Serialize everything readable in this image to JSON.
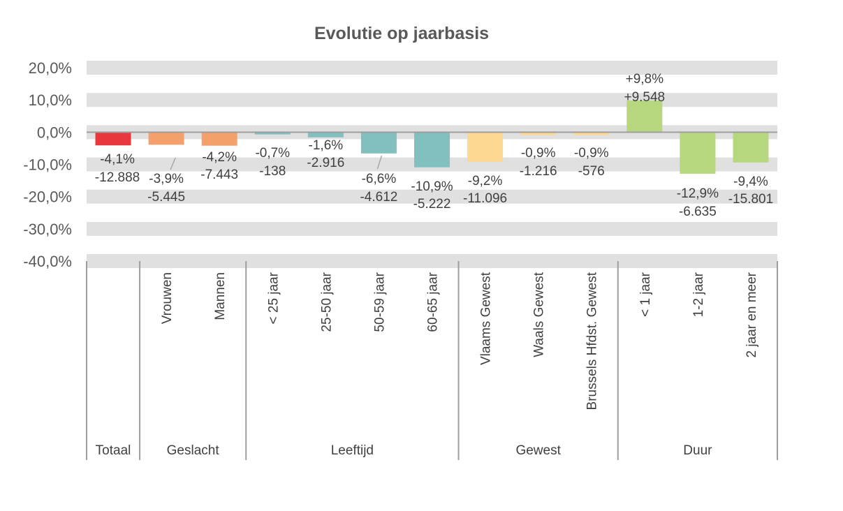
{
  "chart_data": {
    "type": "bar",
    "title": "Evolutie op jaarbasis",
    "ylim": [
      -40,
      20
    ],
    "yticks": [
      20,
      10,
      0,
      -10,
      -20,
      -30,
      -40
    ],
    "ytick_labels": [
      "20,0%",
      "10,0%",
      "0,0%",
      "-10,0%",
      "-20,0%",
      "-30,0%",
      "-40,0%"
    ],
    "categories": [
      "",
      "Vrouwen",
      "Mannen",
      "< 25 jaar",
      "25-50 jaar",
      "50-59 jaar",
      "60-65 jaar",
      "Vlaams Gewest",
      "Waals Gewest",
      "Brussels Hfdst. Gewest",
      "< 1 jaar",
      "1-2 jaar",
      "2 jaar en meer"
    ],
    "values": [
      -4.1,
      -3.9,
      -4.2,
      -0.7,
      -1.6,
      -6.6,
      -10.9,
      -9.2,
      -0.9,
      -0.9,
      9.8,
      -12.9,
      -9.4
    ],
    "pct_labels": [
      "-4,1%",
      "-3,9%",
      "-4,2%",
      "-0,7%",
      "-1,6%",
      "-6,6%",
      "-10,9%",
      "-9,2%",
      "-0,9%",
      "-0,9%",
      "+9,8%",
      "-12,9%",
      "-9,4%"
    ],
    "count_labels": [
      "-12.888",
      "-5.445",
      "-7.443",
      "-138",
      "-2.916",
      "-4.612",
      "-5.222",
      "-11.096",
      "-1.216",
      "-576",
      "+9.548",
      "-6.635",
      "-15.801"
    ],
    "colors": [
      "#e8383d",
      "#f3a06b",
      "#f3a06b",
      "#82bfbf",
      "#82bfbf",
      "#82bfbf",
      "#82bfbf",
      "#fdd892",
      "#fdd892",
      "#fdd892",
      "#b7d77f",
      "#b7d77f",
      "#b7d77f"
    ],
    "groups": [
      {
        "name": "Totaal",
        "count": 1
      },
      {
        "name": "Geslacht",
        "count": 2
      },
      {
        "name": "Leeftijd",
        "count": 4
      },
      {
        "name": "Gewest",
        "count": 3
      },
      {
        "name": "Duur",
        "count": 3
      }
    ],
    "xlabel": "",
    "ylabel": "",
    "grid": true,
    "legend": "none"
  }
}
